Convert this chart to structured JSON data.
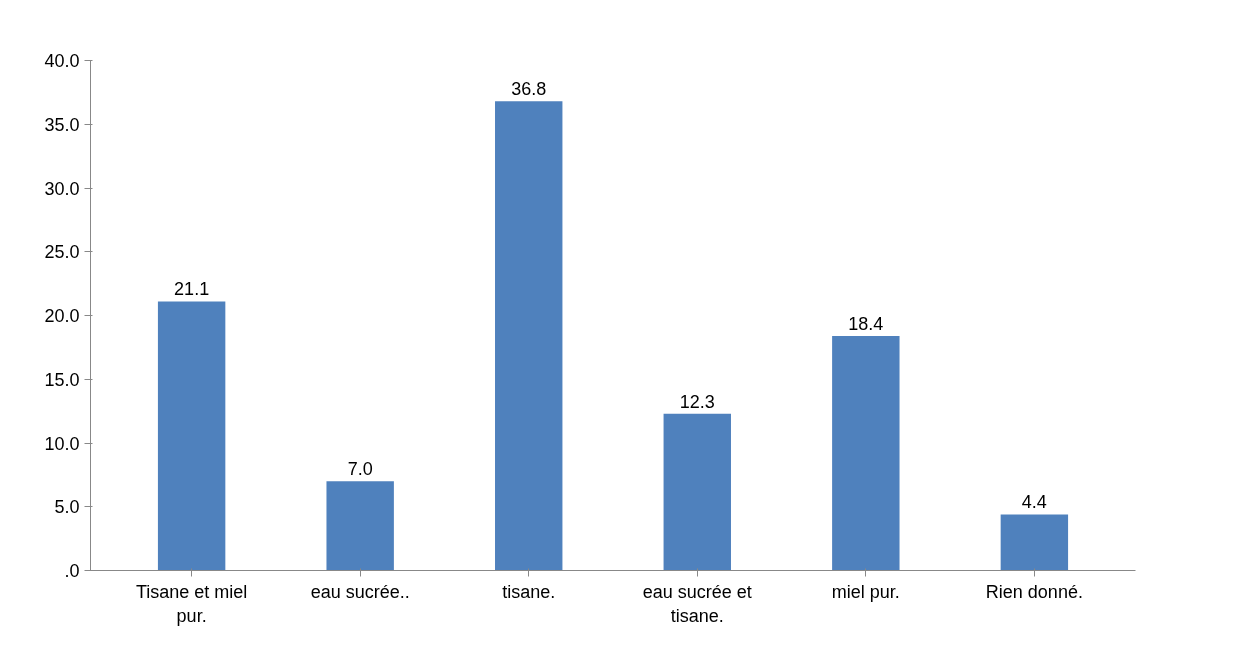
{
  "chart_data": {
    "type": "bar",
    "categories": [
      "Tisane et miel pur.",
      "eau sucrée..",
      "tisane.",
      "eau sucrée et tisane.",
      "miel pur.",
      "Rien donné."
    ],
    "values": [
      21.1,
      7.0,
      36.8,
      12.3,
      18.4,
      4.4
    ],
    "color": "#4f81bd",
    "value_labels": [
      "21.1",
      "7.0",
      "36.8",
      "12.3",
      "18.4",
      "4.4"
    ],
    "ylim": [
      0,
      40
    ],
    "yticks": [
      {
        "value": 0,
        "label": ".0"
      },
      {
        "value": 5,
        "label": "5.0"
      },
      {
        "value": 10,
        "label": "10.0"
      },
      {
        "value": 15,
        "label": "15.0"
      },
      {
        "value": 20,
        "label": "20.0"
      },
      {
        "value": 25,
        "label": "25.0"
      },
      {
        "value": 30,
        "label": "30.0"
      },
      {
        "value": 35,
        "label": "35.0"
      },
      {
        "value": 40,
        "label": "40.0"
      }
    ],
    "grid": false
  }
}
